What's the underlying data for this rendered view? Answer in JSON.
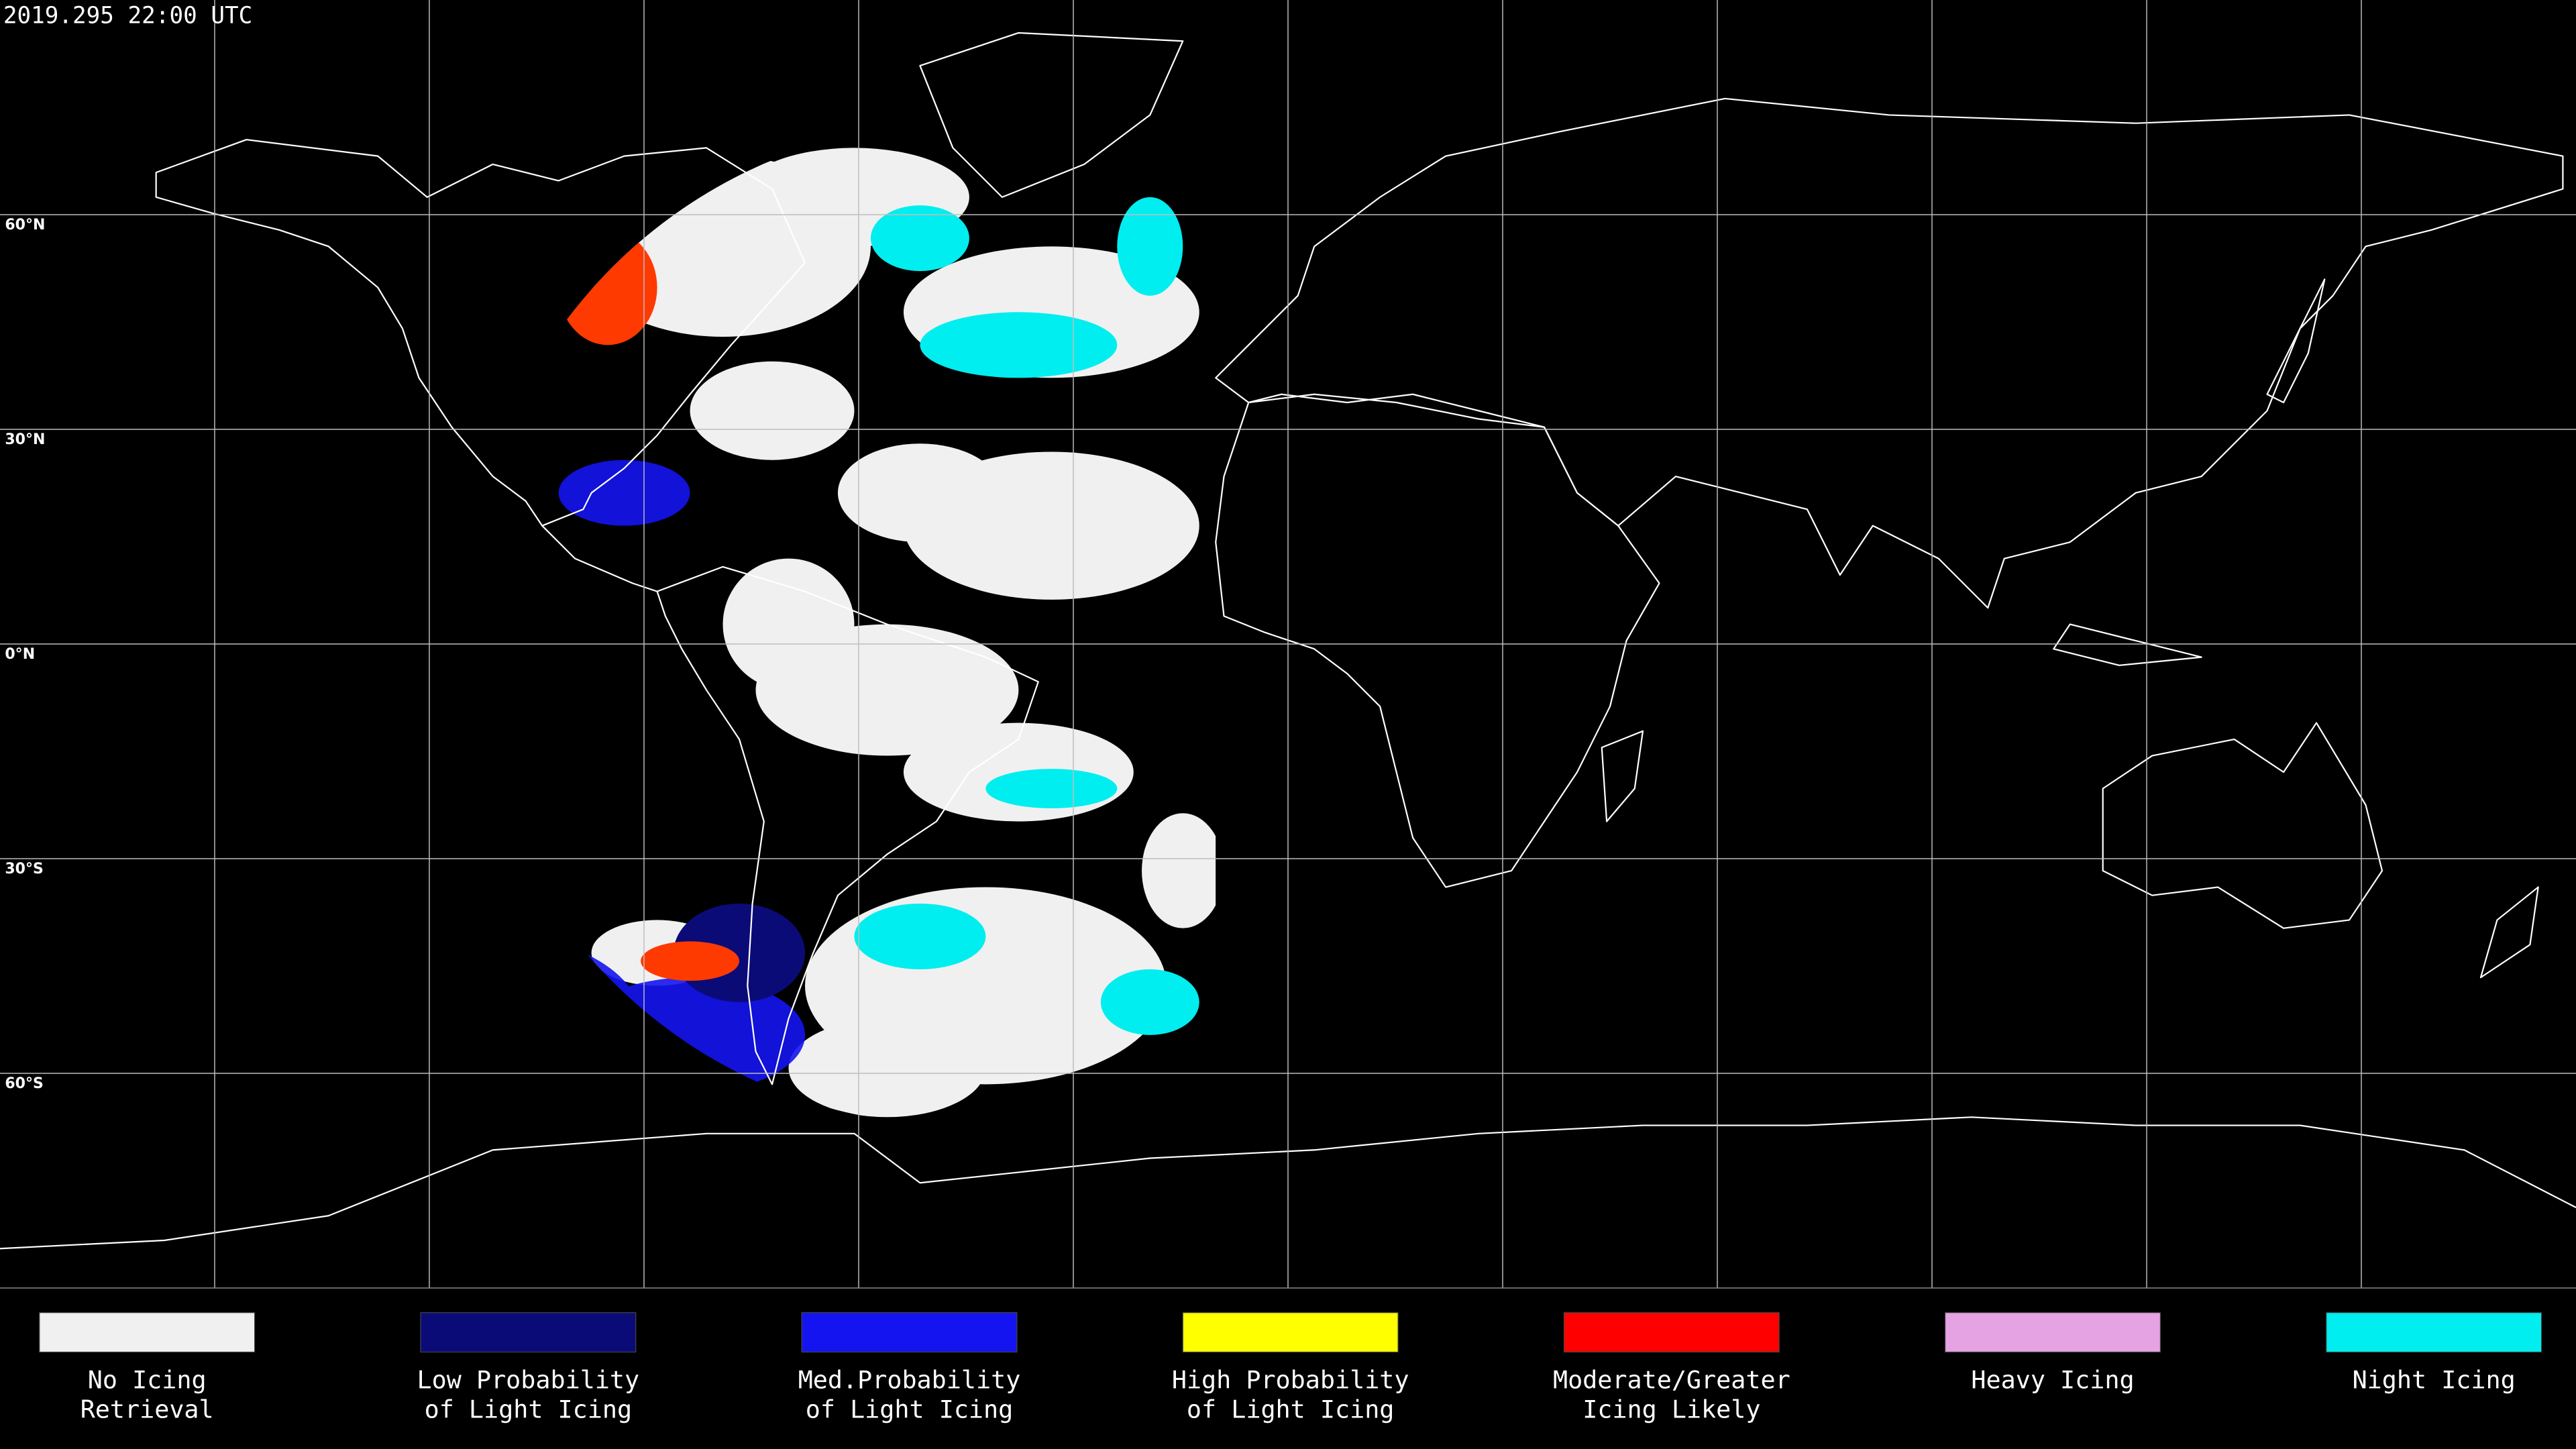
{
  "header": {
    "timestamp": "2019.295 22:00 UTC"
  },
  "map": {
    "latitude_labels": [
      "60°N",
      "30°N",
      "0°N",
      "30°S",
      "60°S"
    ]
  },
  "legend": [
    {
      "lines": [
        "No Icing",
        "Retrieval"
      ],
      "color": "#f0f0f0"
    },
    {
      "lines": [
        "Low Probability",
        "of Light Icing"
      ],
      "color": "#0b0b78"
    },
    {
      "lines": [
        "Med.Probability",
        "of Light Icing"
      ],
      "color": "#1414f0"
    },
    {
      "lines": [
        "High Probability",
        "of Light Icing"
      ],
      "color": "#ffff00"
    },
    {
      "lines": [
        "Moderate/Greater",
        "Icing Likely"
      ],
      "color": "#ff0000"
    },
    {
      "lines": [
        "Heavy Icing"
      ],
      "color": "#e6a3e3"
    },
    {
      "lines": [
        "Night Icing"
      ],
      "color": "#00eef0"
    }
  ]
}
